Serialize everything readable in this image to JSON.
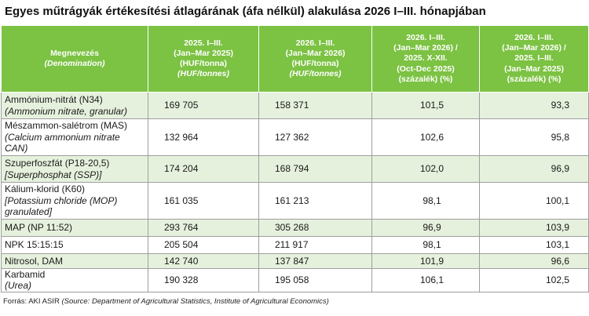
{
  "title": "Egyes műtrágyák értékesítési átlagárának (áfa nélkül) alakulása 2026 I–III. hónapjában",
  "columns": [
    {
      "lines": [
        "Megnevezés"
      ],
      "en_lines": [
        "(Denomination)"
      ]
    },
    {
      "lines": [
        "2025. I–III.",
        "(Jan–Mar 2025)",
        "(HUF/tonna)"
      ],
      "en_lines": [
        "(HUF/tonnes)"
      ]
    },
    {
      "lines": [
        "2026. I–III.",
        "(Jan–Mar 2026)",
        "(HUF/tonna)"
      ],
      "en_lines": [
        "(HUF/tonnes)"
      ]
    },
    {
      "lines": [
        "2026. I–III.",
        "(Jan–Mar 2026) /",
        "2025. X-XII.",
        "(Oct-Dec 2025)",
        "(százalék) (%)"
      ],
      "en_lines": []
    },
    {
      "lines": [
        "2026. I–III.",
        "(Jan–Mar 2026) /",
        "2025. I–III.",
        "(Jan–Mar 2025)",
        "(százalék) (%)"
      ],
      "en_lines": []
    }
  ],
  "rows": [
    {
      "hu": "Ammónium-nitrát (N34)",
      "en": "(Ammonium nitrate, granular)",
      "v2025": "169 705",
      "v2026": "158 371",
      "pct_q4": "101,5",
      "pct_yoy": "93,3"
    },
    {
      "hu": "Mészammon-salétrom (MAS)",
      "en": "(Calcium ammonium nitrate CAN)",
      "v2025": "132 964",
      "v2026": "127 362",
      "pct_q4": "102,6",
      "pct_yoy": "95,8"
    },
    {
      "hu": "Szuperfoszfát (P18-20,5)",
      "en": "[Superphosphat (SSP)]",
      "v2025": "174 204",
      "v2026": "168 794",
      "pct_q4": "102,0",
      "pct_yoy": "96,9"
    },
    {
      "hu": "Kálium-klorid (K60)",
      "en": "[Potassium chloride (MOP) granulated]",
      "v2025": "161 035",
      "v2026": "161 213",
      "pct_q4": "98,1",
      "pct_yoy": "100,1"
    },
    {
      "hu": "MAP (NP 11:52)",
      "en": "",
      "v2025": "293 764",
      "v2026": "305 268",
      "pct_q4": "96,9",
      "pct_yoy": "103,9"
    },
    {
      "hu": "NPK 15:15:15",
      "en": "",
      "v2025": "205 504",
      "v2026": "211 917",
      "pct_q4": "98,1",
      "pct_yoy": "103,1"
    },
    {
      "hu": "Nitrosol, DAM",
      "en": "",
      "v2025": "142 740",
      "v2026": "137 847",
      "pct_q4": "101,9",
      "pct_yoy": "96,6"
    },
    {
      "hu": "Karbamid",
      "en": "(Urea)",
      "v2025": "190 328",
      "v2026": "195 058",
      "pct_q4": "106,1",
      "pct_yoy": "102,5"
    }
  ],
  "footer": {
    "source_hu": "Forrás: AKI ASIR",
    "source_en": "(Source: Department of Agricultural Statistics, Institute of Agricultural Economics)"
  }
}
